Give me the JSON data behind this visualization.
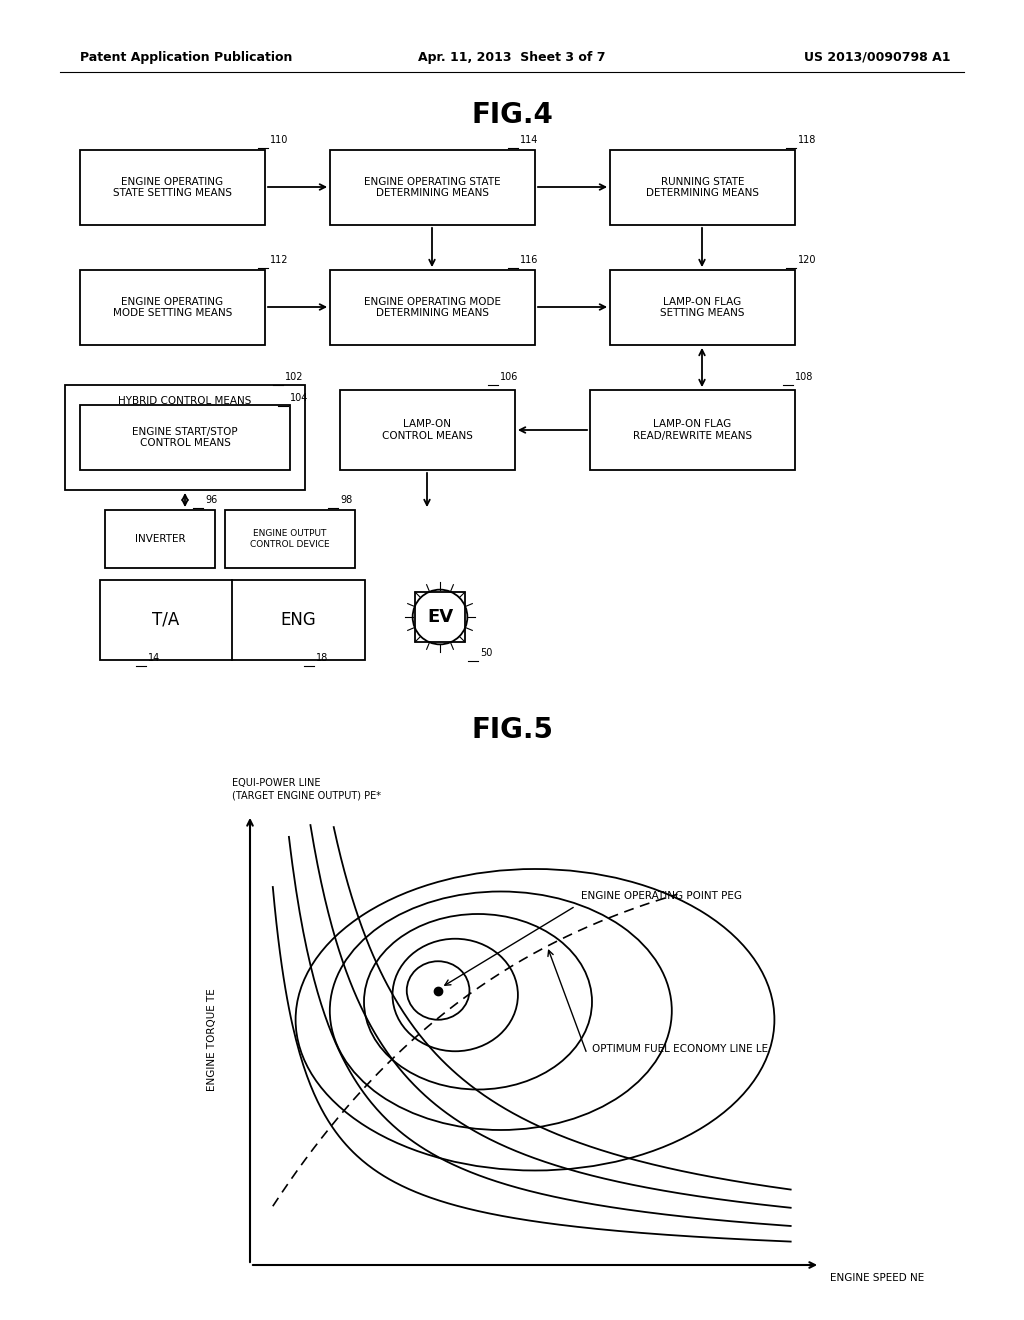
{
  "bg_color": "#ffffff",
  "header_left": "Patent Application Publication",
  "header_center": "Apr. 11, 2013  Sheet 3 of 7",
  "header_right": "US 2013/0090798 A1",
  "fig4_title": "FIG.4",
  "fig5_title": "FIG.5"
}
